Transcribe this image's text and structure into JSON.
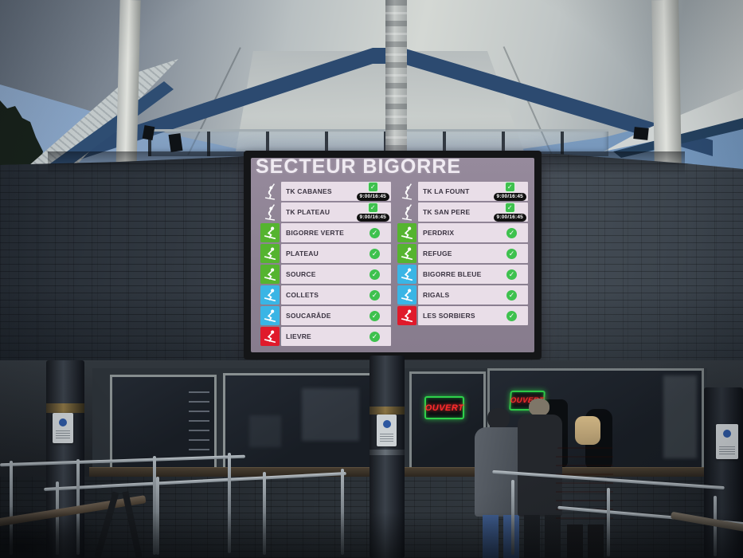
{
  "board": {
    "title": "SECTEUR BIGORRE",
    "colors": {
      "screen_background": "#8e8294",
      "row_background": "#e9dee8",
      "row_text": "#3b3442",
      "title_text": "#f0ebf2",
      "piste_green": "#55b42f",
      "piste_blue": "#3ab5e5",
      "piste_red": "#e01a2b",
      "status_open_green": "#3ec14e",
      "hours_pill_background": "#101010",
      "hours_pill_text": "#ffffff"
    },
    "columns": [
      {
        "rows": [
          {
            "name": "TK CABANES",
            "type": "lift",
            "status": "open",
            "hours": "9:00/16:45"
          },
          {
            "name": "TK PLATEAU",
            "type": "lift",
            "status": "open",
            "hours": "9:00/16:45"
          },
          {
            "name": "BIGORRE VERTE",
            "type": "piste",
            "difficulty": "green",
            "status": "open"
          },
          {
            "name": "PLATEAU",
            "type": "piste",
            "difficulty": "green",
            "status": "open"
          },
          {
            "name": "SOURCE",
            "type": "piste",
            "difficulty": "green",
            "status": "open"
          },
          {
            "name": "COLLETS",
            "type": "piste",
            "difficulty": "blue",
            "status": "open"
          },
          {
            "name": "SOUCARÂDE",
            "type": "piste",
            "difficulty": "blue",
            "status": "open"
          },
          {
            "name": "LIEVRE",
            "type": "piste",
            "difficulty": "red",
            "status": "open"
          }
        ]
      },
      {
        "rows": [
          {
            "name": "TK LA FOUNT",
            "type": "lift",
            "status": "open",
            "hours": "9:00/16:45"
          },
          {
            "name": "TK SAN PERE",
            "type": "lift",
            "status": "open",
            "hours": "9:00/16:45"
          },
          {
            "name": "PERDRIX",
            "type": "piste",
            "difficulty": "green",
            "status": "open"
          },
          {
            "name": "REFUGE",
            "type": "piste",
            "difficulty": "green",
            "status": "open"
          },
          {
            "name": "BIGORRE BLEUE",
            "type": "piste",
            "difficulty": "blue",
            "status": "open"
          },
          {
            "name": "RIGALS",
            "type": "piste",
            "difficulty": "blue",
            "status": "open"
          },
          {
            "name": "LES SORBIERS",
            "type": "piste",
            "difficulty": "red",
            "status": "open"
          }
        ]
      }
    ]
  },
  "kiosk": {
    "neon_signs": [
      {
        "text": "OUVERT",
        "text_color": "#ff2b2b",
        "border_color": "#2ed24a"
      },
      {
        "text": "OUVERT",
        "text_color": "#ff2b2b",
        "border_color": "#2ed24a"
      }
    ]
  },
  "icons": {
    "drag-lift-icon": "skier-on-drag-lift",
    "piste-skier-icon": "downhill-skier",
    "status-open-icon": "✓"
  }
}
